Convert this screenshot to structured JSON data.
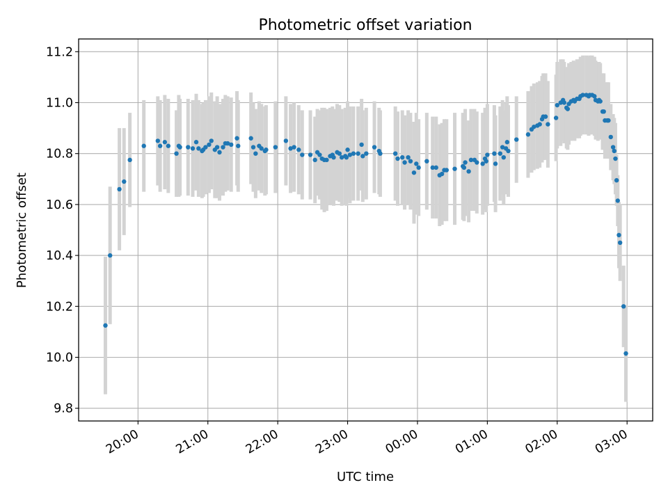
{
  "chart_data": {
    "type": "scatter",
    "title": "Photometric offset variation",
    "xlabel": "UTC time",
    "ylabel": "Photometric offset",
    "x_ticks": [
      "20:00",
      "21:00",
      "22:00",
      "23:00",
      "00:00",
      "01:00",
      "02:00",
      "03:00"
    ],
    "y_ticks": [
      "9.8",
      "10.0",
      "10.2",
      "10.4",
      "10.6",
      "10.8",
      "11.0",
      "11.2"
    ],
    "x_tick_hours": [
      20,
      21,
      22,
      23,
      24,
      25,
      26,
      27
    ],
    "y_tick_values": [
      9.8,
      10.0,
      10.2,
      10.4,
      10.6,
      10.8,
      11.0,
      11.2
    ],
    "xlim": [
      "19:09",
      "03:22"
    ],
    "ylim": [
      9.75,
      11.25
    ],
    "grid": true,
    "colors": {
      "points": "#1f77b4",
      "errorbars": "#d3d3d3"
    },
    "points": [
      [
        "19:32",
        10.125,
        0.27
      ],
      [
        "19:36",
        10.4,
        0.27
      ],
      [
        "19:44",
        10.66,
        0.24
      ],
      [
        "19:48",
        10.69,
        0.21
      ],
      [
        "19:53",
        10.775,
        0.185
      ],
      [
        "20:05",
        10.83,
        0.18
      ],
      [
        "20:17",
        10.85,
        0.175
      ],
      [
        "20:19",
        10.83,
        0.18
      ],
      [
        "20:23",
        10.845,
        0.185
      ],
      [
        "20:26",
        10.83,
        0.185
      ],
      [
        "20:33",
        10.8,
        0.17
      ],
      [
        "20:35",
        10.83,
        0.2
      ],
      [
        "20:36",
        10.825,
        0.19
      ],
      [
        "20:43",
        10.825,
        0.19
      ],
      [
        "20:47",
        10.82,
        0.19
      ],
      [
        "20:50",
        10.845,
        0.19
      ],
      [
        "20:52",
        10.82,
        0.19
      ],
      [
        "20:55",
        10.81,
        0.185
      ],
      [
        "20:56",
        10.815,
        0.185
      ],
      [
        "20:58",
        10.825,
        0.185
      ],
      [
        "21:01",
        10.835,
        0.19
      ],
      [
        "21:03",
        10.85,
        0.19
      ],
      [
        "21:06",
        10.815,
        0.19
      ],
      [
        "21:08",
        10.825,
        0.2
      ],
      [
        "21:10",
        10.805,
        0.19
      ],
      [
        "21:13",
        10.825,
        0.19
      ],
      [
        "21:15",
        10.84,
        0.19
      ],
      [
        "21:17",
        10.84,
        0.185
      ],
      [
        "21:20",
        10.835,
        0.185
      ],
      [
        "21:25",
        10.86,
        0.185
      ],
      [
        "21:26",
        10.83,
        0.18
      ],
      [
        "21:37",
        10.86,
        0.18
      ],
      [
        "21:39",
        10.825,
        0.175
      ],
      [
        "21:41",
        10.8,
        0.175
      ],
      [
        "21:44",
        10.83,
        0.175
      ],
      [
        "21:46",
        10.82,
        0.175
      ],
      [
        "21:49",
        10.81,
        0.175
      ],
      [
        "21:50",
        10.815,
        0.175
      ],
      [
        "21:58",
        10.825,
        0.18
      ],
      [
        "22:07",
        10.85,
        0.175
      ],
      [
        "22:11",
        10.82,
        0.175
      ],
      [
        "22:14",
        10.825,
        0.175
      ],
      [
        "22:18",
        10.815,
        0.175
      ],
      [
        "22:21",
        10.795,
        0.175
      ],
      [
        "22:28",
        10.795,
        0.175
      ],
      [
        "22:32",
        10.775,
        0.17
      ],
      [
        "22:34",
        10.805,
        0.17
      ],
      [
        "22:36",
        10.795,
        0.175
      ],
      [
        "22:38",
        10.78,
        0.2
      ],
      [
        "22:40",
        10.775,
        0.205
      ],
      [
        "22:42",
        10.775,
        0.2
      ],
      [
        "22:45",
        10.79,
        0.19
      ],
      [
        "22:47",
        10.795,
        0.19
      ],
      [
        "22:48",
        10.785,
        0.19
      ],
      [
        "22:51",
        10.805,
        0.19
      ],
      [
        "22:53",
        10.8,
        0.19
      ],
      [
        "22:55",
        10.785,
        0.19
      ],
      [
        "22:58",
        10.79,
        0.19
      ],
      [
        "22:59",
        10.785,
        0.19
      ],
      [
        "23:00",
        10.815,
        0.19
      ],
      [
        "23:02",
        10.795,
        0.19
      ],
      [
        "23:05",
        10.8,
        0.185
      ],
      [
        "23:09",
        10.8,
        0.185
      ],
      [
        "23:12",
        10.835,
        0.18
      ],
      [
        "23:13",
        10.79,
        0.18
      ],
      [
        "23:16",
        10.8,
        0.18
      ],
      [
        "23:23",
        10.825,
        0.18
      ],
      [
        "23:27",
        10.81,
        0.17
      ],
      [
        "23:28",
        10.8,
        0.17
      ],
      [
        "23:41",
        10.8,
        0.185
      ],
      [
        "23:43",
        10.78,
        0.185
      ],
      [
        "23:47",
        10.785,
        0.185
      ],
      [
        "23:49",
        10.765,
        0.185
      ],
      [
        "23:52",
        10.785,
        0.185
      ],
      [
        "23:54",
        10.77,
        0.19
      ],
      [
        "23:57",
        10.725,
        0.2
      ],
      [
        "23:59",
        10.76,
        0.2
      ],
      [
        "24:01",
        10.745,
        0.19
      ],
      [
        "24:08",
        10.77,
        0.19
      ],
      [
        "24:13",
        10.745,
        0.2
      ],
      [
        "24:16",
        10.745,
        0.2
      ],
      [
        "24:19",
        10.715,
        0.2
      ],
      [
        "24:21",
        10.72,
        0.2
      ],
      [
        "24:23",
        10.735,
        0.2
      ],
      [
        "24:25",
        10.735,
        0.2
      ],
      [
        "24:32",
        10.74,
        0.22
      ],
      [
        "24:39",
        10.75,
        0.21
      ],
      [
        "24:40",
        10.745,
        0.21
      ],
      [
        "24:41",
        10.765,
        0.21
      ],
      [
        "24:44",
        10.73,
        0.2
      ],
      [
        "24:46",
        10.775,
        0.2
      ],
      [
        "24:49",
        10.775,
        0.2
      ],
      [
        "24:51",
        10.765,
        0.2
      ],
      [
        "24:56",
        10.76,
        0.2
      ],
      [
        "24:58",
        10.78,
        0.2
      ],
      [
        "24:59",
        10.77,
        0.2
      ],
      [
        "25:00",
        10.795,
        0.2
      ],
      [
        "25:06",
        10.8,
        0.19
      ],
      [
        "25:07",
        10.76,
        0.19
      ],
      [
        "25:11",
        10.8,
        0.185
      ],
      [
        "25:13",
        10.825,
        0.185
      ],
      [
        "25:14",
        10.785,
        0.185
      ],
      [
        "25:16",
        10.82,
        0.18
      ],
      [
        "25:17",
        10.845,
        0.18
      ],
      [
        "25:18",
        10.81,
        0.18
      ],
      [
        "25:25",
        10.855,
        0.17
      ],
      [
        "25:35",
        10.875,
        0.17
      ],
      [
        "25:38",
        10.895,
        0.17
      ],
      [
        "25:40",
        10.905,
        0.17
      ],
      [
        "25:43",
        10.91,
        0.17
      ],
      [
        "25:45",
        10.915,
        0.17
      ],
      [
        "25:47",
        10.935,
        0.17
      ],
      [
        "25:48",
        10.945,
        0.17
      ],
      [
        "25:50",
        10.945,
        0.17
      ],
      [
        "25:52",
        10.915,
        0.17
      ],
      [
        "25:59",
        10.94,
        0.17
      ],
      [
        "26:00",
        10.99,
        0.17
      ],
      [
        "26:03",
        11.0,
        0.17
      ],
      [
        "26:05",
        11.01,
        0.16
      ],
      [
        "26:06",
        11.0,
        0.16
      ],
      [
        "26:08",
        10.98,
        0.16
      ],
      [
        "26:09",
        10.975,
        0.16
      ],
      [
        "26:10",
        10.995,
        0.16
      ],
      [
        "26:12",
        11.005,
        0.155
      ],
      [
        "26:14",
        11.01,
        0.155
      ],
      [
        "26:15",
        11.005,
        0.155
      ],
      [
        "26:17",
        11.015,
        0.155
      ],
      [
        "26:19",
        11.015,
        0.155
      ],
      [
        "26:20",
        11.025,
        0.155
      ],
      [
        "26:22",
        11.03,
        0.155
      ],
      [
        "26:25",
        11.03,
        0.155
      ],
      [
        "26:27",
        11.025,
        0.155
      ],
      [
        "26:28",
        11.03,
        0.155
      ],
      [
        "26:30",
        11.03,
        0.155
      ],
      [
        "26:32",
        11.025,
        0.155
      ],
      [
        "26:33",
        11.01,
        0.155
      ],
      [
        "26:35",
        11.005,
        0.155
      ],
      [
        "26:36",
        11.01,
        0.15
      ],
      [
        "26:37",
        11.005,
        0.15
      ],
      [
        "26:39",
        10.965,
        0.15
      ],
      [
        "26:40",
        10.965,
        0.15
      ],
      [
        "26:41",
        10.93,
        0.15
      ],
      [
        "26:43",
        10.93,
        0.15
      ],
      [
        "26:44",
        10.93,
        0.15
      ],
      [
        "26:46",
        10.865,
        0.13
      ],
      [
        "26:48",
        10.825,
        0.13
      ],
      [
        "26:49",
        10.81,
        0.13
      ],
      [
        "26:50",
        10.78,
        0.14
      ],
      [
        "26:51",
        10.695,
        0.1
      ],
      [
        "26:52",
        10.615,
        0.1
      ],
      [
        "26:53",
        10.48,
        0.13
      ],
      [
        "26:54",
        10.45,
        0.15
      ],
      [
        "26:57",
        10.2,
        0.16
      ],
      [
        "26:59",
        10.015,
        0.19
      ]
    ]
  }
}
